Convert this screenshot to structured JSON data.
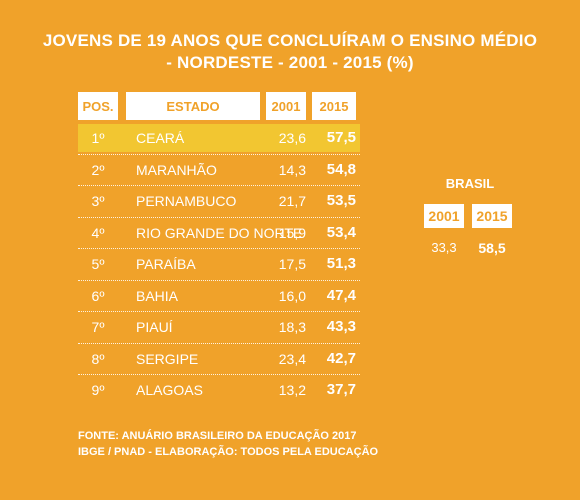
{
  "title": {
    "line1": "JOVENS DE 19 ANOS QUE CONCLUÍRAM O ENSINO MÉDIO",
    "line2": "- NORDESTE - 2001 - 2015 (%)"
  },
  "table": {
    "headers": [
      "POS.",
      "ESTADO",
      "2001",
      "2015"
    ],
    "highlight_color": "#F2C631"
  },
  "chart_data": {
    "type": "table",
    "columns": [
      "POS.",
      "ESTADO",
      "2001",
      "2015"
    ],
    "rows": [
      {
        "pos": "1º",
        "estado": "CEARÁ",
        "v2001": "23,6",
        "v2015": "57,5"
      },
      {
        "pos": "2º",
        "estado": "MARANHÃO",
        "v2001": "14,3",
        "v2015": "54,8"
      },
      {
        "pos": "3º",
        "estado": "PERNAMBUCO",
        "v2001": "21,7",
        "v2015": "53,5"
      },
      {
        "pos": "4º",
        "estado": "RIO GRANDE DO NORTE",
        "v2001": "15,9",
        "v2015": "53,4"
      },
      {
        "pos": "5º",
        "estado": "PARAÍBA",
        "v2001": "17,5",
        "v2015": "51,3"
      },
      {
        "pos": "6º",
        "estado": "BAHIA",
        "v2001": "16,0",
        "v2015": "47,4"
      },
      {
        "pos": "7º",
        "estado": "PIAUÍ",
        "v2001": "18,3",
        "v2015": "43,3"
      },
      {
        "pos": "8º",
        "estado": "SERGIPE",
        "v2001": "23,4",
        "v2015": "42,7"
      },
      {
        "pos": "9º",
        "estado": "ALAGOAS",
        "v2001": "13,2",
        "v2015": "37,7"
      }
    ],
    "brasil": {
      "label": "BRASIL",
      "headers": [
        "2001",
        "2015"
      ],
      "values": [
        "33,3",
        "58,5"
      ]
    }
  },
  "source": {
    "line1": "FONTE: ANUÁRIO BRASILEIRO DA EDUCAÇÃO 2017",
    "line2": "IBGE / PNAD - ELABORAÇÃO: TODOS PELA EDUCAÇÃO"
  },
  "colors": {
    "background": "#F0A22A",
    "text": "#FFFFFF",
    "highlight": "#F2C631"
  }
}
